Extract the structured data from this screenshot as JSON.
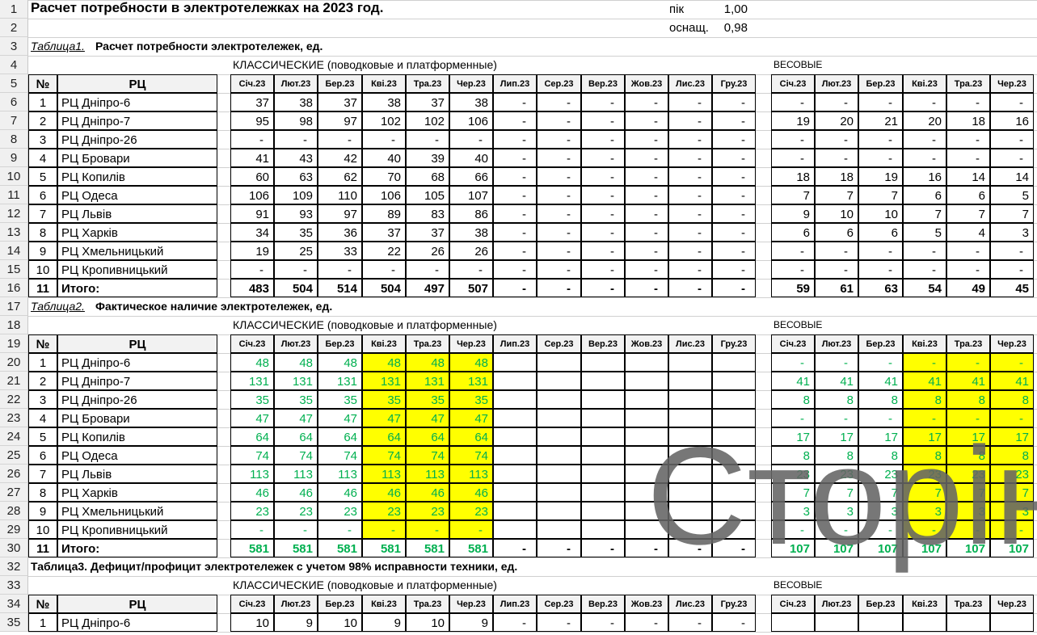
{
  "title": "Расчет потребности в электротележках на 2023 год.",
  "params": [
    {
      "label": "пік",
      "value": "1,00"
    },
    {
      "label": "оснащ.",
      "value": "0,98"
    }
  ],
  "row_numbers": [
    "1",
    "2",
    "3",
    "4",
    "5",
    "6",
    "7",
    "8",
    "9",
    "10",
    "11",
    "12",
    "13",
    "14",
    "15",
    "16",
    "17",
    "18",
    "19",
    "20",
    "21",
    "22",
    "23",
    "24",
    "25",
    "26",
    "27",
    "28",
    "29",
    "30",
    "32",
    "33",
    "34",
    "35"
  ],
  "table1": {
    "title_italic": "Таблица1.",
    "title_bold": "Расчет потребности электротележек, ед.",
    "classic_header": "КЛАССИЧЕСКИЕ (поводковые и платформенные)",
    "weight_header": "ВЕСОВЫЕ",
    "col_no": "№",
    "col_rc": "РЦ",
    "months": [
      "Січ.23",
      "Лют.23",
      "Бер.23",
      "Кві.23",
      "Тра.23",
      "Чер.23",
      "Лип.23",
      "Сер.23",
      "Вер.23",
      "Жов.23",
      "Лис.23",
      "Гру.23"
    ],
    "months_weight": [
      "Січ.23",
      "Лют.23",
      "Бер.23",
      "Кві.23",
      "Тра.23",
      "Чер.23"
    ],
    "rows": [
      {
        "no": "1",
        "rc": "РЦ Дніпро-6",
        "classic": [
          "37",
          "38",
          "37",
          "38",
          "37",
          "38",
          "-",
          "-",
          "-",
          "-",
          "-",
          "-"
        ],
        "weight": [
          "-",
          "-",
          "-",
          "-",
          "-",
          "-"
        ]
      },
      {
        "no": "2",
        "rc": "РЦ Дніпро-7",
        "classic": [
          "95",
          "98",
          "97",
          "102",
          "102",
          "106",
          "-",
          "-",
          "-",
          "-",
          "-",
          "-"
        ],
        "weight": [
          "19",
          "20",
          "21",
          "20",
          "18",
          "16"
        ]
      },
      {
        "no": "3",
        "rc": "РЦ Дніпро-26",
        "classic": [
          "-",
          "-",
          "-",
          "-",
          "-",
          "-",
          "-",
          "-",
          "-",
          "-",
          "-",
          "-"
        ],
        "weight": [
          "-",
          "-",
          "-",
          "-",
          "-",
          "-"
        ]
      },
      {
        "no": "4",
        "rc": "РЦ Бровари",
        "classic": [
          "41",
          "43",
          "42",
          "40",
          "39",
          "40",
          "-",
          "-",
          "-",
          "-",
          "-",
          "-"
        ],
        "weight": [
          "-",
          "-",
          "-",
          "-",
          "-",
          "-"
        ]
      },
      {
        "no": "5",
        "rc": "РЦ Копилів",
        "classic": [
          "60",
          "63",
          "62",
          "70",
          "68",
          "66",
          "-",
          "-",
          "-",
          "-",
          "-",
          "-"
        ],
        "weight": [
          "18",
          "18",
          "19",
          "16",
          "14",
          "14"
        ]
      },
      {
        "no": "6",
        "rc": "РЦ Одеса",
        "classic": [
          "106",
          "109",
          "110",
          "106",
          "105",
          "107",
          "-",
          "-",
          "-",
          "-",
          "-",
          "-"
        ],
        "weight": [
          "7",
          "7",
          "7",
          "6",
          "6",
          "5"
        ]
      },
      {
        "no": "7",
        "rc": "РЦ Львів",
        "classic": [
          "91",
          "93",
          "97",
          "89",
          "83",
          "86",
          "-",
          "-",
          "-",
          "-",
          "-",
          "-"
        ],
        "weight": [
          "9",
          "10",
          "10",
          "7",
          "7",
          "7"
        ]
      },
      {
        "no": "8",
        "rc": "РЦ Харків",
        "classic": [
          "34",
          "35",
          "36",
          "37",
          "37",
          "38",
          "-",
          "-",
          "-",
          "-",
          "-",
          "-"
        ],
        "weight": [
          "6",
          "6",
          "6",
          "5",
          "4",
          "3"
        ]
      },
      {
        "no": "9",
        "rc": "РЦ Хмельницький",
        "classic": [
          "19",
          "25",
          "33",
          "22",
          "26",
          "26",
          "-",
          "-",
          "-",
          "-",
          "-",
          "-"
        ],
        "weight": [
          "-",
          "-",
          "-",
          "-",
          "-",
          "-"
        ]
      },
      {
        "no": "10",
        "rc": "РЦ Кропивницький",
        "classic": [
          "-",
          "-",
          "-",
          "-",
          "-",
          "-",
          "-",
          "-",
          "-",
          "-",
          "-",
          "-"
        ],
        "weight": [
          "-",
          "-",
          "-",
          "-",
          "-",
          "-"
        ]
      },
      {
        "no": "11",
        "rc": "Итого:",
        "classic": [
          "483",
          "504",
          "514",
          "504",
          "497",
          "507",
          "-",
          "-",
          "-",
          "-",
          "-",
          "-"
        ],
        "weight": [
          "59",
          "61",
          "63",
          "54",
          "49",
          "45"
        ]
      }
    ]
  },
  "table2": {
    "title_italic": "Таблица2.",
    "title_bold": "Фактическое наличие электротележек, ед.",
    "classic_header": "КЛАССИЧЕСКИЕ (поводковые и платформенные)",
    "weight_header": "ВЕСОВЫЕ",
    "col_no": "№",
    "col_rc": "РЦ",
    "months": [
      "Січ.23",
      "Лют.23",
      "Бер.23",
      "Кві.23",
      "Тра.23",
      "Чер.23",
      "Лип.23",
      "Сер.23",
      "Вер.23",
      "Жов.23",
      "Лис.23",
      "Гру.23"
    ],
    "months_weight": [
      "Січ.23",
      "Лют.23",
      "Бер.23",
      "Кві.23",
      "Тра.23",
      "Чер.23"
    ],
    "highlight_color": "#ffff00",
    "value_color": "#00b050",
    "rows": [
      {
        "no": "1",
        "rc": "РЦ Дніпро-6",
        "classic": [
          "48",
          "48",
          "48",
          "48",
          "48",
          "48",
          "",
          "",
          "",
          "",
          "",
          ""
        ],
        "weight": [
          "-",
          "-",
          "-",
          "-",
          "-",
          "-"
        ]
      },
      {
        "no": "2",
        "rc": "РЦ Дніпро-7",
        "classic": [
          "131",
          "131",
          "131",
          "131",
          "131",
          "131",
          "",
          "",
          "",
          "",
          "",
          ""
        ],
        "weight": [
          "41",
          "41",
          "41",
          "41",
          "41",
          "41"
        ]
      },
      {
        "no": "3",
        "rc": "РЦ Дніпро-26",
        "classic": [
          "35",
          "35",
          "35",
          "35",
          "35",
          "35",
          "",
          "",
          "",
          "",
          "",
          ""
        ],
        "weight": [
          "8",
          "8",
          "8",
          "8",
          "8",
          "8"
        ]
      },
      {
        "no": "4",
        "rc": "РЦ Бровари",
        "classic": [
          "47",
          "47",
          "47",
          "47",
          "47",
          "47",
          "",
          "",
          "",
          "",
          "",
          ""
        ],
        "weight": [
          "-",
          "-",
          "-",
          "-",
          "-",
          "-"
        ]
      },
      {
        "no": "5",
        "rc": "РЦ Копилів",
        "classic": [
          "64",
          "64",
          "64",
          "64",
          "64",
          "64",
          "",
          "",
          "",
          "",
          "",
          ""
        ],
        "weight": [
          "17",
          "17",
          "17",
          "17",
          "17",
          "17"
        ]
      },
      {
        "no": "6",
        "rc": "РЦ Одеса",
        "classic": [
          "74",
          "74",
          "74",
          "74",
          "74",
          "74",
          "",
          "",
          "",
          "",
          "",
          ""
        ],
        "weight": [
          "8",
          "8",
          "8",
          "8",
          "8",
          "8"
        ]
      },
      {
        "no": "7",
        "rc": "РЦ Львів",
        "classic": [
          "113",
          "113",
          "113",
          "113",
          "113",
          "113",
          "",
          "",
          "",
          "",
          "",
          ""
        ],
        "weight": [
          "23",
          "23",
          "23",
          "23",
          "23",
          "23"
        ]
      },
      {
        "no": "8",
        "rc": "РЦ Харків",
        "classic": [
          "46",
          "46",
          "46",
          "46",
          "46",
          "46",
          "",
          "",
          "",
          "",
          "",
          ""
        ],
        "weight": [
          "7",
          "7",
          "7",
          "7",
          "7",
          "7"
        ]
      },
      {
        "no": "9",
        "rc": "РЦ Хмельницький",
        "classic": [
          "23",
          "23",
          "23",
          "23",
          "23",
          "23",
          "",
          "",
          "",
          "",
          "",
          ""
        ],
        "weight": [
          "3",
          "3",
          "3",
          "3",
          "3",
          "3"
        ]
      },
      {
        "no": "10",
        "rc": "РЦ Кропивницький",
        "classic": [
          "-",
          "-",
          "-",
          "-",
          "-",
          "-",
          "",
          "",
          "",
          "",
          "",
          ""
        ],
        "weight": [
          "-",
          "-",
          "-",
          "-",
          "-",
          "-"
        ]
      },
      {
        "no": "11",
        "rc": "Итого:",
        "classic": [
          "581",
          "581",
          "581",
          "581",
          "581",
          "581",
          "-",
          "-",
          "-",
          "-",
          "-",
          "-"
        ],
        "weight": [
          "107",
          "107",
          "107",
          "107",
          "107",
          "107"
        ]
      }
    ]
  },
  "table3": {
    "title_bold": "Таблица3. Дефицит/профицит электротележек с учетом 98% исправности техники, ед.",
    "classic_header": "КЛАССИЧЕСКИЕ (поводковые и платформенные)",
    "weight_header": "ВЕСОВЫЕ",
    "col_no": "№",
    "col_rc": "РЦ",
    "months": [
      "Січ.23",
      "Лют.23",
      "Бер.23",
      "Кві.23",
      "Тра.23",
      "Чер.23",
      "Лип.23",
      "Сер.23",
      "Вер.23",
      "Жов.23",
      "Лис.23",
      "Гру.23"
    ],
    "months_weight": [
      "Січ.23",
      "Лют.23",
      "Бер.23",
      "Кві.23",
      "Тра.23",
      "Чер.23"
    ],
    "rows": [
      {
        "no": "1",
        "rc": "РЦ Дніпро-6",
        "classic": [
          "10",
          "9",
          "10",
          "9",
          "10",
          "9",
          "-",
          "-",
          "-",
          "-",
          "-",
          "-"
        ],
        "weight": [
          "",
          "",
          "",
          "",
          "",
          ""
        ]
      }
    ]
  },
  "watermark": "Сторін"
}
